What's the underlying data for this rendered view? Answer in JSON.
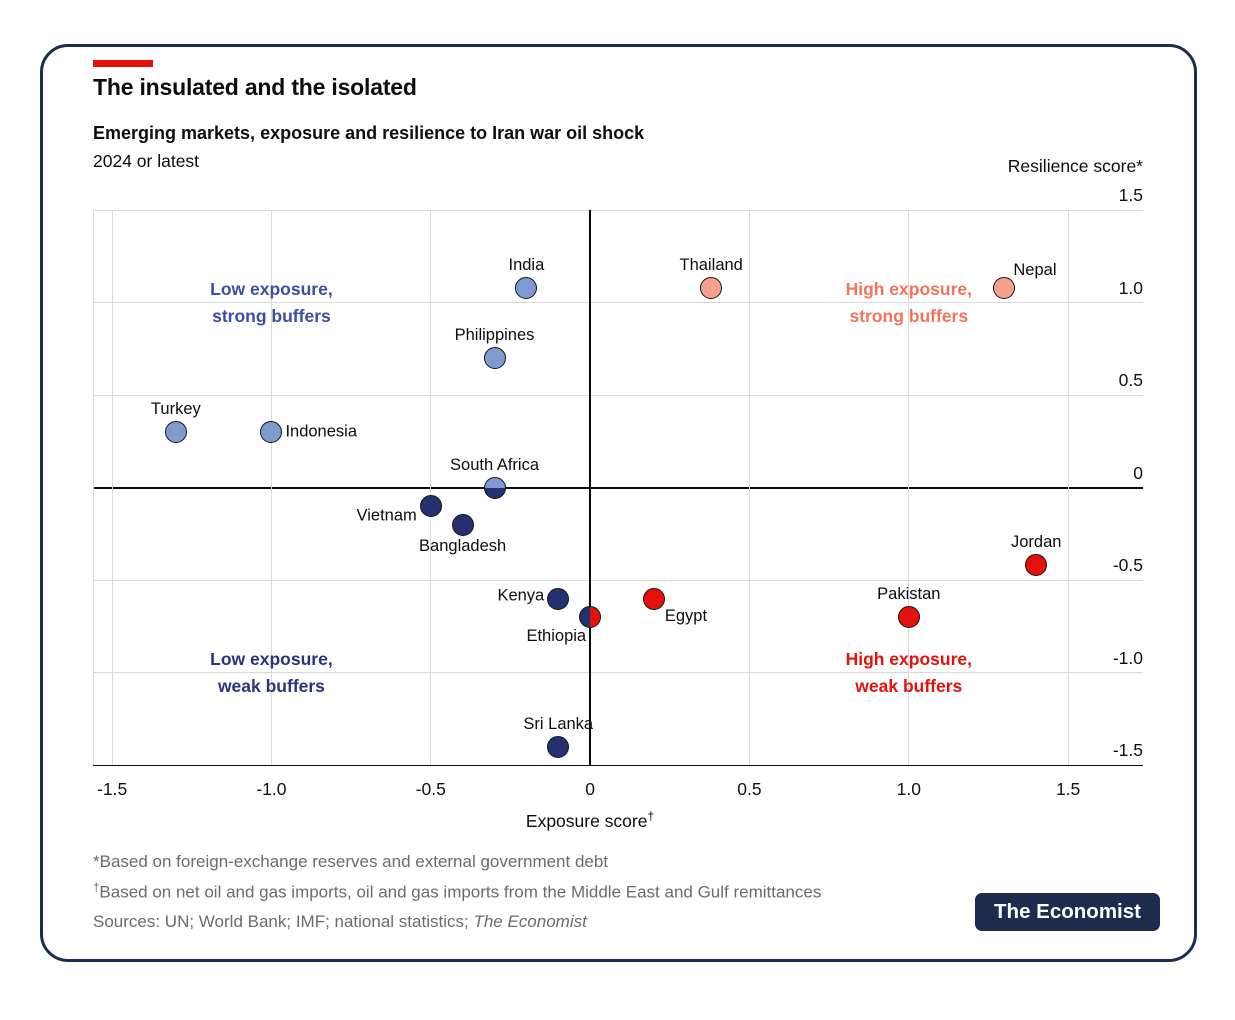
{
  "card": {
    "border_color": "#1e2c4d",
    "background": "#ffffff"
  },
  "header": {
    "accent_color": "#e3120b",
    "title": "The insulated and the isolated",
    "subtitle": "Emerging markets, exposure and resilience to Iran war oil shock",
    "period": "2024 or latest"
  },
  "chart_data": {
    "type": "scatter",
    "x_axis": {
      "label_main": "Exposure score",
      "label_sup": "†",
      "min": -1.56,
      "max": 1.735,
      "ticks": [
        {
          "v": -1.5,
          "t": "-1.5"
        },
        {
          "v": -1.0,
          "t": "-1.0"
        },
        {
          "v": -0.5,
          "t": "-0.5"
        },
        {
          "v": 0,
          "t": "0"
        },
        {
          "v": 0.5,
          "t": "0.5"
        },
        {
          "v": 1.0,
          "t": "1.0"
        },
        {
          "v": 1.5,
          "t": "1.5"
        }
      ]
    },
    "y_axis": {
      "label": "Resilience score*",
      "min": -1.5,
      "max": 1.5,
      "ticks": [
        {
          "v": 1.5,
          "t": "1.5"
        },
        {
          "v": 1.0,
          "t": "1.0"
        },
        {
          "v": 0.5,
          "t": "0.5"
        },
        {
          "v": 0,
          "t": "0"
        },
        {
          "v": -0.5,
          "t": "-0.5"
        },
        {
          "v": -1.0,
          "t": "-1.0"
        },
        {
          "v": -1.5,
          "t": "-1.5"
        }
      ]
    },
    "grid": {
      "minor_color": "#d9d9d9",
      "zero_color": "#0b0b0b",
      "base_color": "#0b0b0b"
    },
    "dot_border": "#141414",
    "groups": {
      "low_strong": {
        "label": "Low exposure, strong buffers",
        "color": "#7e9ace"
      },
      "low_weak": {
        "label": "Low exposure, weak buffers",
        "color": "#243170"
      },
      "high_strong": {
        "label": "High exposure, strong buffers",
        "color": "#f4a18e"
      },
      "high_weak": {
        "label": "High exposure, weak buffers",
        "color": "#e3120b"
      }
    },
    "points": [
      {
        "name": "Turkey",
        "x": -1.3,
        "y": 0.3,
        "group": "low_strong",
        "label_pos": "above"
      },
      {
        "name": "Indonesia",
        "x": -1.0,
        "y": 0.3,
        "group": "low_strong",
        "label_pos": "right"
      },
      {
        "name": "India",
        "x": -0.2,
        "y": 1.08,
        "group": "low_strong",
        "label_pos": "above"
      },
      {
        "name": "Philippines",
        "x": -0.3,
        "y": 0.7,
        "group": "low_strong",
        "label_pos": "above"
      },
      {
        "name": "South Africa",
        "x": -0.3,
        "y": 0,
        "split": "horizontal",
        "split_colors": [
          "low_strong",
          "low_weak"
        ],
        "label_pos": "above"
      },
      {
        "name": "Vietnam",
        "x": -0.5,
        "y": -0.1,
        "group": "low_weak",
        "label_pos": "left",
        "nudge": [
          0,
          10
        ]
      },
      {
        "name": "Bangladesh",
        "x": -0.4,
        "y": -0.2,
        "group": "low_weak",
        "label_pos": "below"
      },
      {
        "name": "Kenya",
        "x": -0.1,
        "y": -0.6,
        "group": "low_weak",
        "label_pos": "left",
        "nudge": [
          0,
          -3
        ]
      },
      {
        "name": "Ethiopia",
        "x": 0,
        "y": -0.7,
        "split": "vertical",
        "split_colors": [
          "low_weak",
          "high_weak"
        ],
        "label_pos": "below-left"
      },
      {
        "name": "Egypt",
        "x": 0.2,
        "y": -0.6,
        "group": "high_weak",
        "label_pos": "below-right"
      },
      {
        "name": "Sri Lanka",
        "x": -0.1,
        "y": -1.4,
        "group": "low_weak",
        "label_pos": "above"
      },
      {
        "name": "Thailand",
        "x": 0.38,
        "y": 1.08,
        "group": "high_strong",
        "label_pos": "above"
      },
      {
        "name": "Nepal",
        "x": 1.3,
        "y": 1.08,
        "group": "high_strong",
        "label_pos": "above-right"
      },
      {
        "name": "Pakistan",
        "x": 1.0,
        "y": -0.7,
        "group": "high_weak",
        "label_pos": "above"
      },
      {
        "name": "Jordan",
        "x": 1.4,
        "y": -0.42,
        "group": "high_weak",
        "label_pos": "above"
      }
    ],
    "quadrant_labels": [
      {
        "line1": "Low exposure,",
        "line2": "strong buffers",
        "x": -1.0,
        "y": 1.0,
        "color": "#3a4fa2"
      },
      {
        "line1": "High exposure,",
        "line2": "strong buffers",
        "x": 1.0,
        "y": 1.0,
        "color": "#f4735b"
      },
      {
        "line1": "Low exposure,",
        "line2": "weak buffers",
        "x": -1.0,
        "y": -1.0,
        "color": "#27357f"
      },
      {
        "line1": "High exposure,",
        "line2": "weak buffers",
        "x": 1.0,
        "y": -1.0,
        "color": "#e3120b"
      }
    ]
  },
  "footnotes": {
    "line1": "*Based on foreign-exchange reserves and external government debt",
    "line2_sup": "†",
    "line2_rest": "Based on net oil and gas imports, oil and gas imports from the Middle East and Gulf remittances",
    "sources_prefix": "Sources: UN; World Bank; IMF; national statistics; ",
    "sources_italic": "The Economist"
  },
  "logo": {
    "text": "The Economist",
    "bg": "#1e2c4d",
    "text_color": "#ffffff"
  }
}
